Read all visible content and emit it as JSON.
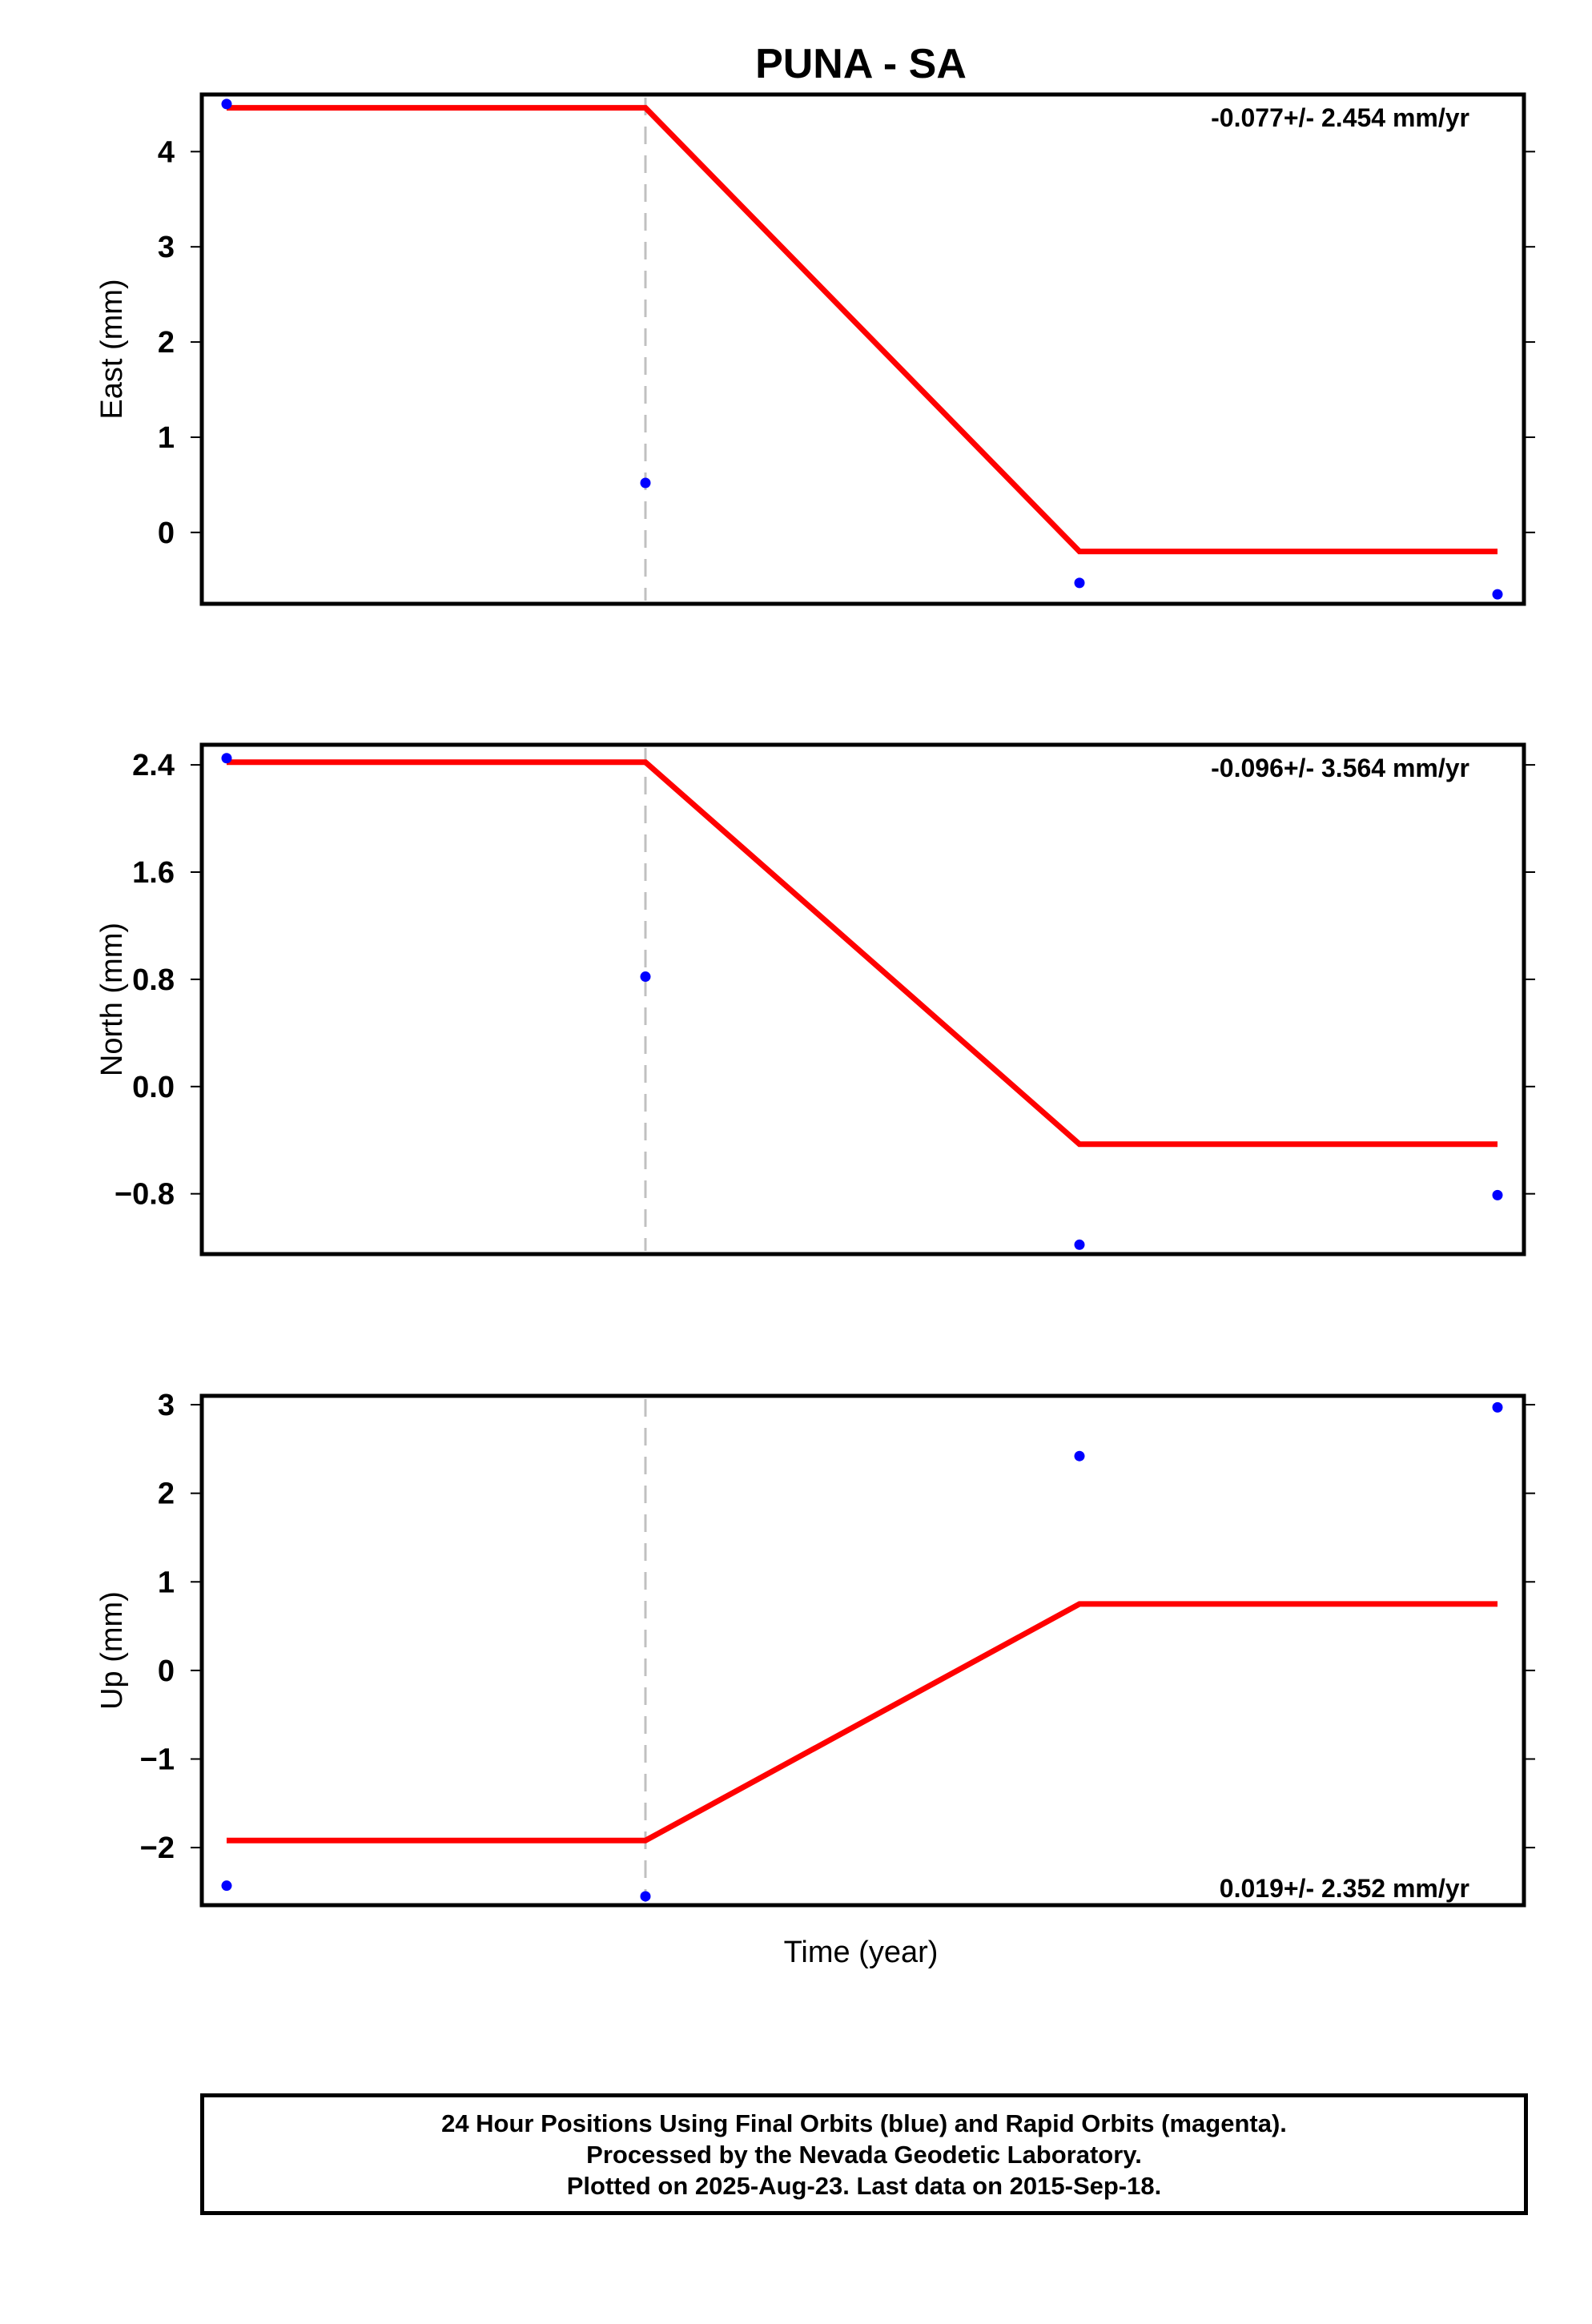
{
  "figure": {
    "title": "PUNA - SA",
    "xlabel": "Time (year)",
    "footer": {
      "line1": "24 Hour Positions Using Final Orbits (blue) and Rapid Orbits (magenta).",
      "line2": "Processed by the Nevada Geodetic Laboratory.",
      "line3": "Plotted on 2025-Aug-23. Last data on 2015-Sep-18."
    },
    "colors": {
      "points": "#0000ff",
      "model": "#ff0000",
      "break_line": "#c0c0c0",
      "frame": "#000000"
    }
  },
  "chart_data": [
    {
      "type": "scatter",
      "ylabel": "East (mm)",
      "rate_label": "-0.077+/- 2.454 mm/yr",
      "ylim": [
        -0.75,
        4.6
      ],
      "yticks": [
        0,
        1,
        2,
        3,
        4
      ],
      "ytick_labels": [
        "0",
        "1",
        "2",
        "3",
        "4"
      ],
      "points": {
        "name": "Final Orbits",
        "x": [
          0,
          1,
          2,
          3
        ],
        "y": [
          4.5,
          0.52,
          -0.53,
          -0.65
        ]
      },
      "model": {
        "x": [
          0,
          1,
          2,
          3
        ],
        "y": [
          4.46,
          4.46,
          -0.2,
          -0.2
        ]
      },
      "break_x": 1,
      "grid": false
    },
    {
      "type": "scatter",
      "ylabel": "North (mm)",
      "rate_label": "-0.096+/- 3.564 mm/yr",
      "ylim": [
        -1.25,
        2.55
      ],
      "yticks": [
        -0.8,
        0.0,
        0.8,
        1.6,
        2.4
      ],
      "ytick_labels": [
        "−0.8",
        "0.0",
        "0.8",
        "1.6",
        "2.4"
      ],
      "points": {
        "name": "Final Orbits",
        "x": [
          0,
          1,
          2,
          3
        ],
        "y": [
          2.45,
          0.82,
          -1.18,
          -0.81
        ]
      },
      "model": {
        "x": [
          0,
          1,
          2,
          3
        ],
        "y": [
          2.42,
          2.42,
          -0.43,
          -0.43
        ]
      },
      "break_x": 1,
      "grid": false
    },
    {
      "type": "scatter",
      "ylabel": "Up (mm)",
      "rate_label": "0.019+/- 2.352 mm/yr",
      "ylim": [
        -2.65,
        3.1
      ],
      "yticks": [
        -2,
        -1,
        0,
        1,
        2,
        3
      ],
      "ytick_labels": [
        "−2",
        "−1",
        "0",
        "1",
        "2",
        "3"
      ],
      "points": {
        "name": "Final Orbits",
        "x": [
          0,
          1,
          2,
          3
        ],
        "y": [
          -2.43,
          -2.55,
          2.42,
          2.97
        ]
      },
      "model": {
        "x": [
          0,
          1,
          2,
          3
        ],
        "y": [
          -1.92,
          -1.92,
          0.75,
          0.75
        ]
      },
      "break_x": 1,
      "grid": false
    }
  ]
}
